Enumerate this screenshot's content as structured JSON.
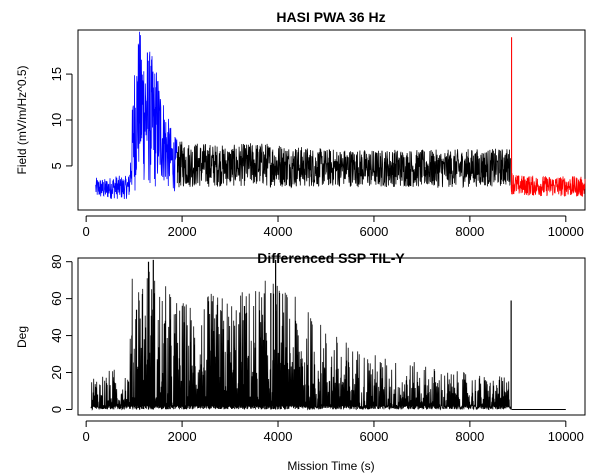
{
  "chart_data": [
    {
      "type": "line",
      "title": "HASI PWA 36 Hz",
      "xlabel": "",
      "ylabel": "Field (mV/m/Hz^0.5)",
      "xlim": [
        -170,
        10400
      ],
      "ylim": [
        0.2,
        19.8
      ],
      "xticks": [
        0,
        2000,
        4000,
        6000,
        8000,
        10000
      ],
      "yticks": [
        5,
        10,
        15
      ],
      "xtick_labels": [
        "0",
        "2000",
        "4000",
        "6000",
        "8000",
        "10000"
      ],
      "ytick_labels": [
        "5",
        "10",
        "15"
      ],
      "grid": false,
      "legend": "none",
      "series": [
        {
          "color": "#0000ff",
          "x": [
            200,
            400,
            600,
            800,
            900,
            950,
            1000,
            1100,
            1200,
            1300,
            1400,
            1500,
            1600,
            1700,
            1800,
            1900
          ],
          "y": [
            2.6,
            2.5,
            2.7,
            2.6,
            2.8,
            6.0,
            9.0,
            12.0,
            11.0,
            10.5,
            9.5,
            9.0,
            8.0,
            6.5,
            5.5,
            5.0
          ],
          "noise": [
            0.7,
            0.7,
            0.8,
            0.8,
            0.8,
            2.5,
            4.5,
            5.0,
            5.0,
            4.8,
            4.5,
            4.0,
            3.0,
            2.5,
            2.0,
            1.8
          ]
        },
        {
          "color": "#000000",
          "x": [
            1900,
            2000,
            2500,
            3000,
            3500,
            4000,
            4500,
            5000,
            5500,
            6000,
            6500,
            7000,
            7500,
            8000,
            8500,
            8850
          ],
          "y": [
            5.0,
            5.2,
            5.1,
            5.0,
            5.2,
            5.1,
            4.9,
            4.8,
            4.8,
            4.7,
            4.8,
            4.7,
            4.7,
            4.8,
            4.8,
            4.9
          ],
          "noise": [
            1.6,
            1.6,
            1.5,
            1.4,
            1.5,
            1.5,
            1.4,
            1.3,
            1.3,
            1.3,
            1.3,
            1.3,
            1.3,
            1.3,
            1.3,
            1.3
          ]
        },
        {
          "color": "#ff0000",
          "x": [
            8860,
            9000,
            9500,
            10000,
            10400
          ],
          "y": [
            3.2,
            2.9,
            2.8,
            2.8,
            2.7
          ],
          "noise": [
            0.8,
            0.7,
            0.7,
            0.7,
            0.7
          ],
          "spike": {
            "x": 8870,
            "y": 19.0
          }
        }
      ]
    },
    {
      "type": "line",
      "title": "Differenced SSP TIL-Y",
      "xlabel": "Mission Time (s)",
      "ylabel": "Deg",
      "xlim": [
        -170,
        10400
      ],
      "ylim": [
        -3,
        82
      ],
      "xticks": [
        0,
        2000,
        4000,
        6000,
        8000,
        10000
      ],
      "yticks": [
        0,
        20,
        40,
        60,
        80
      ],
      "xtick_labels": [
        "0",
        "2000",
        "4000",
        "6000",
        "8000",
        "10000"
      ],
      "ytick_labels": [
        "0",
        "20",
        "40",
        "60",
        "80"
      ],
      "grid": false,
      "legend": "none",
      "series": [
        {
          "color": "#000000",
          "x": [
            100,
            500,
            900,
            950,
            1200,
            1500,
            2000,
            2500,
            3000,
            3500,
            3900,
            4500,
            5000,
            5500,
            6000,
            6500,
            7000,
            7500,
            8000,
            8500,
            8850
          ],
          "y": [
            11,
            12,
            14,
            40,
            48,
            40,
            33,
            35,
            35,
            38,
            40,
            32,
            25,
            20,
            17,
            15,
            14,
            12,
            11,
            10,
            10
          ],
          "baseline": 0
        }
      ],
      "peaks": [
        {
          "x": 1300,
          "y": 80
        },
        {
          "x": 1400,
          "y": 81
        },
        {
          "x": 1050,
          "y": 54
        },
        {
          "x": 3850,
          "y": 63
        },
        {
          "x": 3950,
          "y": 81
        },
        {
          "x": 3300,
          "y": 56
        },
        {
          "x": 8860,
          "y": 59
        }
      ],
      "flat_segment": {
        "x": [
          8870,
          10000
        ],
        "y": 0
      }
    }
  ]
}
